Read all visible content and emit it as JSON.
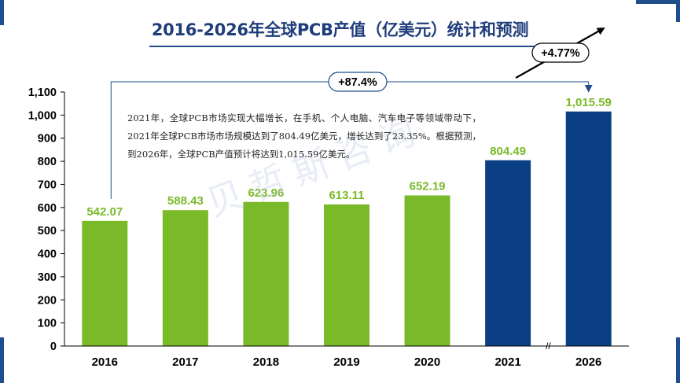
{
  "title": "2016-2026年全球PCB产值（亿美元）统计和预测",
  "description": "2021年，全球PCB市场实现大幅增长，在手机、个人电脑、汽车电子等领域带动下，2021年全球PCB市场市场规模达到了804.49亿美元，增长达到了23.35%。根据预测，到2026年，全球PCB产值预计将达到1,015.59亿美元。",
  "watermark": "贝哲斯咨询",
  "colors": {
    "green": "#7aba28",
    "blue": "#0b3f83",
    "navy": "#1f3d7a",
    "axis": "#000000"
  },
  "chart_data": {
    "type": "bar",
    "title": "2016-2026年全球PCB产值（亿美元）统计和预测",
    "categories": [
      "2016",
      "2017",
      "2018",
      "2019",
      "2020",
      "2021",
      "2026"
    ],
    "values": [
      542.07,
      588.43,
      623.96,
      613.11,
      652.19,
      804.49,
      1015.59
    ],
    "value_labels": [
      "542.07",
      "588.43",
      "623.96",
      "613.11",
      "652.19",
      "804.49",
      "1,015.59"
    ],
    "bar_colors": [
      "green",
      "green",
      "green",
      "green",
      "green",
      "blue",
      "blue"
    ],
    "label_colors": [
      "green",
      "green",
      "green",
      "green",
      "green",
      "green",
      "green"
    ],
    "ylim": [
      0,
      1100
    ],
    "yticks": [
      0,
      100,
      200,
      300,
      400,
      500,
      600,
      700,
      800,
      900,
      1000,
      1100
    ],
    "ytick_labels": [
      "0",
      "100",
      "200",
      "300",
      "400",
      "500",
      "600",
      "700",
      "800",
      "900",
      "1,000",
      "1,100"
    ],
    "xlabel": "",
    "ylabel": "",
    "axis_break": "//",
    "annotations": [
      {
        "text": "+87.4%",
        "type": "bracket",
        "from": "2016",
        "to": "2026"
      },
      {
        "text": "+4.77%",
        "type": "trend-arrow",
        "from": "2021",
        "to": "2026"
      }
    ]
  }
}
